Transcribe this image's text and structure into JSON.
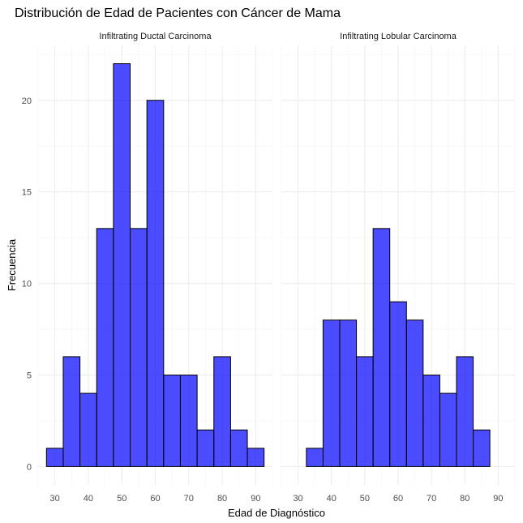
{
  "chart_data": {
    "type": "bar",
    "subtype": "histogram-faceted",
    "title": "Distribución de Edad de Pacientes con Cáncer de Mama",
    "xlabel": "Edad de Diagnóstico",
    "ylabel": "Frecuencia",
    "bar_color": "#0000ff",
    "bar_opacity": 0.7,
    "bar_outline": "#000000",
    "grid": true,
    "xlim": [
      25,
      95
    ],
    "ylim": [
      -1,
      23
    ],
    "x_ticks": [
      30,
      40,
      50,
      60,
      70,
      80,
      90
    ],
    "y_ticks": [
      0,
      5,
      10,
      15,
      20
    ],
    "bin_width": 5,
    "bin_starts": [
      27.5,
      32.5,
      37.5,
      42.5,
      47.5,
      52.5,
      57.5,
      62.5,
      67.5,
      72.5,
      77.5,
      82.5,
      87.5
    ],
    "panels": [
      {
        "label": "Infiltrating Ductal Carcinoma",
        "values": [
          1,
          6,
          4,
          13,
          22,
          13,
          20,
          5,
          5,
          2,
          6,
          2,
          1
        ]
      },
      {
        "label": "Infiltrating Lobular Carcinoma",
        "values": [
          0,
          1,
          8,
          8,
          6,
          13,
          9,
          8,
          5,
          4,
          6,
          2,
          0
        ]
      }
    ]
  }
}
